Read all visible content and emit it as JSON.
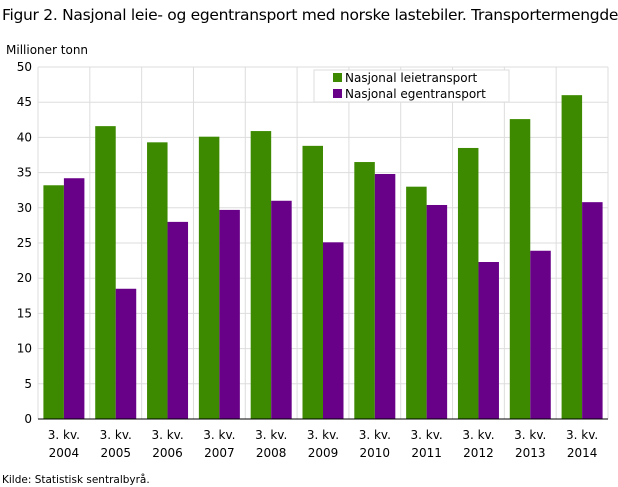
{
  "title": "Figur 2. Nasjonal leie- og egentransport med norske lastebiler. Transportermengde",
  "source": "Kilde: Statistisk sentralbyrå.",
  "chart_data": {
    "type": "bar",
    "title": "Figur 2. Nasjonal leie- og egentransport med norske lastebiler. Transportermengde",
    "ylabel": "Millioner  tonn",
    "xlabel": "",
    "ylim": [
      0,
      50
    ],
    "yticks": [
      0,
      5,
      10,
      15,
      20,
      25,
      30,
      35,
      40,
      45,
      50
    ],
    "grid": true,
    "legend_position": "top-right",
    "categories": [
      [
        "3. kv.",
        "2004"
      ],
      [
        "3. kv.",
        "2005"
      ],
      [
        "3. kv.",
        "2006"
      ],
      [
        "3. kv.",
        "2007"
      ],
      [
        "3. kv.",
        "2008"
      ],
      [
        "3. kv.",
        "2009"
      ],
      [
        "3. kv.",
        "2010"
      ],
      [
        "3. kv.",
        "2011"
      ],
      [
        "3. kv.",
        "2012"
      ],
      [
        "3. kv.",
        "2013"
      ],
      [
        "3. kv.",
        "2014"
      ]
    ],
    "series": [
      {
        "name": "Nasjonal leietransport",
        "color": "#3d8a00",
        "values": [
          33.2,
          41.6,
          39.3,
          40.1,
          40.9,
          38.8,
          36.5,
          33.0,
          38.5,
          42.6,
          46.0
        ]
      },
      {
        "name": "Nasjonal egentransport",
        "color": "#690188",
        "values": [
          34.2,
          18.5,
          28.0,
          29.7,
          31.0,
          25.1,
          34.8,
          30.4,
          22.3,
          23.9,
          30.8
        ]
      }
    ]
  }
}
